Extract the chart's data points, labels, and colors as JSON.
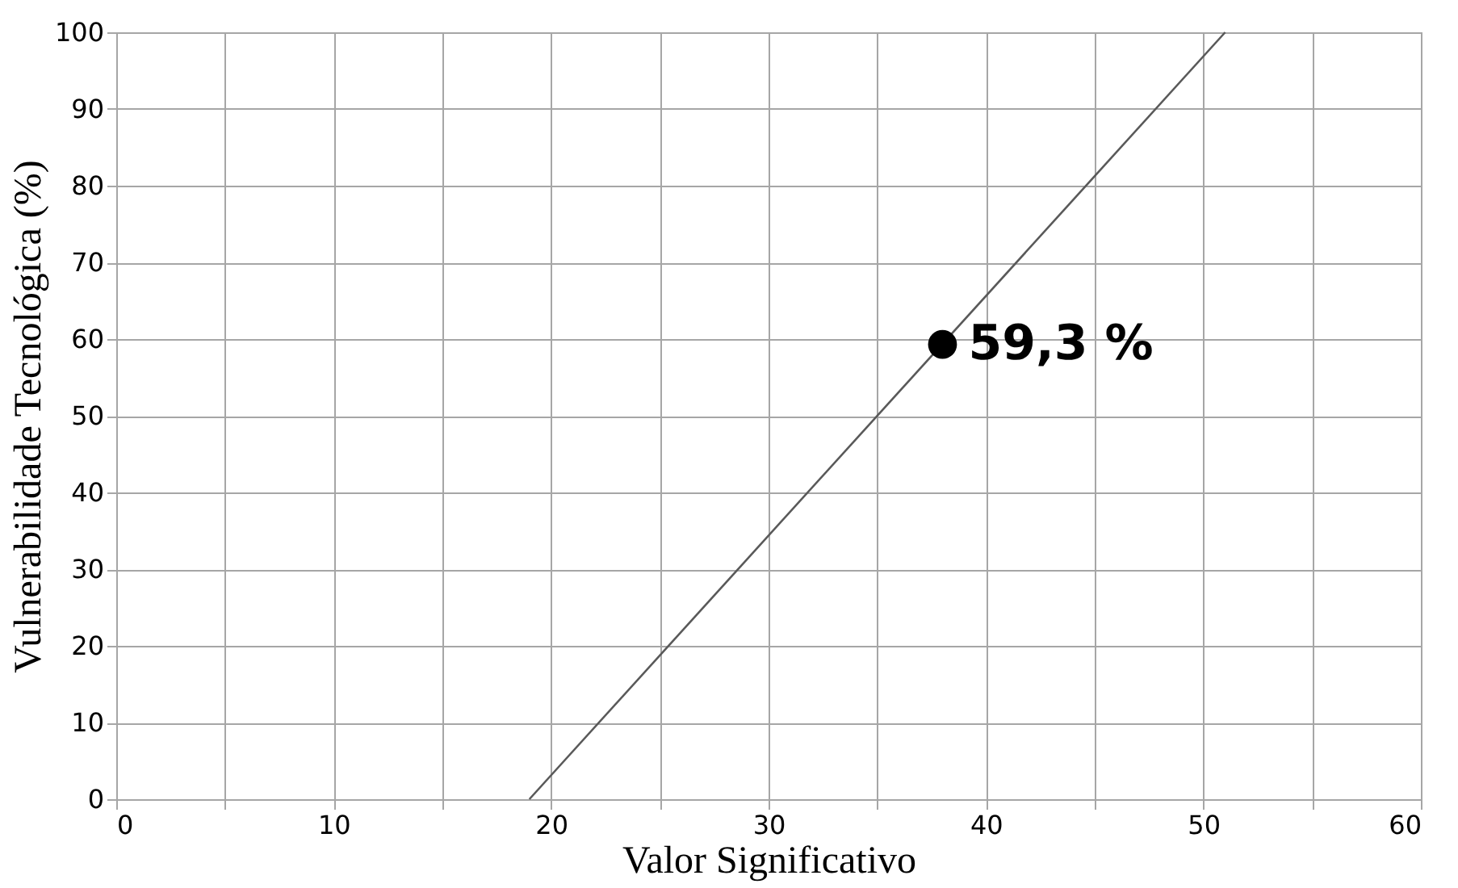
{
  "chart_data": {
    "type": "line",
    "xlabel": "Valor Significativo",
    "ylabel": "Vulnerabilidade Tecnológica (%)",
    "xlim": [
      0,
      60
    ],
    "ylim": [
      0,
      100
    ],
    "xticks": [
      0,
      {
        "value": 5,
        "label": null
      },
      10,
      {
        "value": 15,
        "label": null
      },
      20,
      {
        "value": 25,
        "label": null
      },
      30,
      {
        "value": 35,
        "label": null
      },
      40,
      {
        "value": 45,
        "label": null
      },
      50,
      {
        "value": 55,
        "label": null
      },
      60
    ],
    "yticks": [
      0,
      10,
      20,
      30,
      40,
      50,
      60,
      70,
      80,
      90,
      100
    ],
    "grid": true,
    "series": [
      {
        "color": "#595959",
        "x": [
          19,
          51
        ],
        "values": [
          0,
          100
        ],
        "marker": "none",
        "line_style": "solid"
      },
      {
        "type": "scatter",
        "color": "#000000",
        "x": [
          38
        ],
        "values": [
          59.3
        ],
        "marker": "circle",
        "value_labels": [
          "59,3 %"
        ]
      }
    ]
  }
}
